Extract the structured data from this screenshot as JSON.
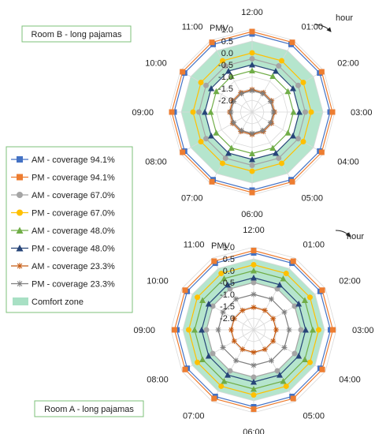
{
  "hours": [
    "12:00",
    "01:00",
    "02:00",
    "03:00",
    "04:00",
    "05:00",
    "06:00",
    "07:00",
    "08:00",
    "09:00",
    "10:00",
    "11:00"
  ],
  "radial_axis": {
    "label": "PMV",
    "ticks": [
      "1.0",
      "0.5",
      "0.0",
      "-0.5",
      "-1.0",
      "-1.5",
      "-2.0"
    ],
    "min": -2.5,
    "max": 1.0
  },
  "hour_label": "hour",
  "legend": [
    {
      "label": "AM - coverage 94.1%",
      "color": "#4472C4",
      "marker": "square"
    },
    {
      "label": "PM - coverage 94.1%",
      "color": "#ED7D31",
      "marker": "square"
    },
    {
      "label": "AM - coverage 67.0%",
      "color": "#A5A5A5",
      "marker": "circle"
    },
    {
      "label": "PM - coverage 67.0%",
      "color": "#FFC000",
      "marker": "circle"
    },
    {
      "label": "AM - coverage 48.0%",
      "color": "#70AD47",
      "marker": "triangle"
    },
    {
      "label": "PM - coverage 48.0%",
      "color": "#264478",
      "marker": "triangle"
    },
    {
      "label": "AM - coverage 23.3%",
      "color": "#C55A11",
      "marker": "star"
    },
    {
      "label": "PM - coverage 23.3%",
      "color": "#7F7F7F",
      "marker": "star"
    },
    {
      "label": "Comfort zone",
      "color": "#A8E0C4",
      "marker": "band"
    }
  ],
  "chart_data": [
    {
      "type": "radar",
      "title": "Room B - long pajamas",
      "categories": [
        "12:00",
        "01:00",
        "02:00",
        "03:00",
        "04:00",
        "05:00",
        "06:00",
        "07:00",
        "08:00",
        "09:00",
        "10:00",
        "11:00"
      ],
      "rlim": [
        -2.5,
        1.0
      ],
      "comfort_zone": [
        -0.5,
        0.5
      ],
      "series": [
        {
          "name": "AM - coverage 94.1%",
          "values": [
            0.8,
            0.8,
            0.8,
            0.8,
            0.8,
            0.8,
            0.8,
            0.8,
            0.8,
            0.8,
            0.8,
            0.8
          ]
        },
        {
          "name": "PM - coverage 94.1%",
          "values": [
            0.9,
            0.9,
            0.9,
            0.9,
            0.9,
            0.9,
            0.9,
            0.9,
            0.9,
            0.9,
            0.9,
            0.9
          ]
        },
        {
          "name": "AM - coverage 67.0%",
          "values": [
            -0.25,
            -0.25,
            -0.25,
            -0.25,
            -0.25,
            -0.25,
            -0.25,
            -0.25,
            -0.25,
            -0.25,
            -0.25,
            -0.25
          ]
        },
        {
          "name": "PM - coverage 67.0%",
          "values": [
            0.0,
            0.0,
            0.0,
            0.0,
            0.0,
            0.0,
            0.0,
            0.0,
            0.0,
            0.0,
            0.0,
            0.0
          ]
        },
        {
          "name": "AM - coverage 48.0%",
          "values": [
            -0.75,
            -0.75,
            -0.75,
            -0.75,
            -0.75,
            -0.75,
            -0.75,
            -0.75,
            -0.75,
            -0.75,
            -0.75,
            -0.75
          ]
        },
        {
          "name": "PM - coverage 48.0%",
          "values": [
            -0.5,
            -0.5,
            -0.5,
            -0.5,
            -0.5,
            -0.5,
            -0.5,
            -0.5,
            -0.5,
            -0.5,
            -0.5,
            -0.5
          ]
        },
        {
          "name": "AM - coverage 23.3%",
          "values": [
            -1.55,
            -1.55,
            -1.55,
            -1.55,
            -1.55,
            -1.55,
            -1.55,
            -1.55,
            -1.55,
            -1.55,
            -1.55,
            -1.55
          ]
        },
        {
          "name": "PM - coverage 23.3%",
          "values": [
            -1.6,
            -1.6,
            -1.6,
            -1.6,
            -1.6,
            -1.6,
            -1.6,
            -1.6,
            -1.6,
            -1.6,
            -1.6,
            -1.6
          ]
        }
      ]
    },
    {
      "type": "radar",
      "title": "Room A - long pajamas",
      "categories": [
        "12:00",
        "01:00",
        "02:00",
        "03:00",
        "04:00",
        "05:00",
        "06:00",
        "07:00",
        "08:00",
        "09:00",
        "10:00",
        "11:00"
      ],
      "rlim": [
        -2.5,
        1.0
      ],
      "comfort_zone": [
        -0.5,
        0.5
      ],
      "series": [
        {
          "name": "AM - coverage 94.1%",
          "values": [
            0.75,
            0.75,
            0.75,
            0.75,
            0.75,
            0.75,
            0.75,
            0.75,
            0.75,
            0.75,
            0.75,
            0.75
          ]
        },
        {
          "name": "PM - coverage 94.1%",
          "values": [
            0.85,
            0.85,
            0.85,
            0.85,
            0.85,
            0.85,
            0.85,
            0.85,
            0.85,
            0.85,
            0.85,
            0.85
          ]
        },
        {
          "name": "AM - coverage 67.0%",
          "values": [
            -0.5,
            -0.5,
            -0.5,
            -0.5,
            -0.5,
            -0.5,
            -0.5,
            -0.5,
            -0.5,
            -0.5,
            -0.5,
            -0.5
          ]
        },
        {
          "name": "PM - coverage 67.0%",
          "values": [
            0.25,
            0.25,
            0.25,
            0.25,
            0.25,
            0.25,
            0.25,
            0.25,
            0.25,
            0.25,
            0.25,
            0.25
          ]
        },
        {
          "name": "AM - coverage 48.0%",
          "values": [
            0.0,
            0.0,
            0.0,
            0.0,
            0.0,
            0.0,
            0.0,
            0.0,
            0.0,
            0.0,
            0.0,
            0.0
          ]
        },
        {
          "name": "PM - coverage 48.0%",
          "values": [
            -0.3,
            -0.3,
            -0.3,
            -0.3,
            -0.3,
            -0.3,
            -0.3,
            -0.3,
            -0.3,
            -0.3,
            -0.3,
            -0.3
          ]
        },
        {
          "name": "AM - coverage 23.3%",
          "values": [
            -1.55,
            -1.55,
            -1.55,
            -1.55,
            -1.55,
            -1.55,
            -1.55,
            -1.55,
            -1.55,
            -1.55,
            -1.55,
            -1.55
          ]
        },
        {
          "name": "PM - coverage 23.3%",
          "values": [
            -1.0,
            -1.0,
            -1.0,
            -1.0,
            -1.0,
            -1.0,
            -1.0,
            -1.0,
            -1.0,
            -1.0,
            -1.0,
            -1.0
          ]
        }
      ]
    }
  ]
}
